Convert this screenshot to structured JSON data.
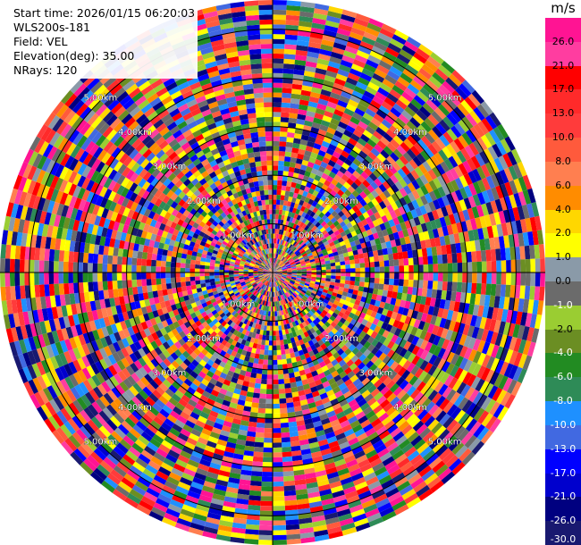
{
  "header": {
    "start_time": "Start time: 2026/01/15 06:20:03",
    "instrument": "WLS200s-181",
    "field": "Field: VEL",
    "elevation": "Elevation(deg): 35.00",
    "nrays": "NRays: 120"
  },
  "chart_data": {
    "type": "heatmap",
    "projection": "polar-ppi",
    "field": "VEL",
    "units": "m/s",
    "n_rays": 120,
    "elevation_deg": 35.0,
    "range_rings_km": [
      1.0,
      2.0,
      3.0,
      4.0,
      5.0
    ],
    "ring_labels": [
      "1.00km",
      "2.00km",
      "3.00km",
      "4.00km",
      "5.00km"
    ],
    "max_range_km": 5.6,
    "range_gate_km": 0.1,
    "value_range": [
      -30.0,
      30.0
    ],
    "colorbar": {
      "unit_label": "m/s",
      "labels": [
        "26.0",
        "21.0",
        "17.0",
        "13.0",
        "10.0",
        "8.0",
        "6.0",
        "4.0",
        "2.0",
        "1.0",
        "0.0",
        "-1.0",
        "-2.0",
        "-4.0",
        "-6.0",
        "-8.0",
        "-10.0",
        "-13.0",
        "-17.0",
        "-21.0",
        "-26.0",
        "-30.0"
      ],
      "boundaries": [
        30,
        26,
        21,
        17,
        13,
        10,
        8,
        6,
        4,
        2,
        1,
        0,
        -1,
        -2,
        -4,
        -6,
        -8,
        -10,
        -13,
        -17,
        -21,
        -26,
        -30
      ],
      "colors": [
        "#ff1493",
        "#ff3da0",
        "#ff0000",
        "#ff2a2a",
        "#ff3b3b",
        "#ff5a3c",
        "#ff7f50",
        "#ff8c00",
        "#ffd700",
        "#ffff00",
        "#8a9aa8",
        "#6b6b6b",
        "#9acd32",
        "#6b8e23",
        "#228b22",
        "#2e8b57",
        "#1e90ff",
        "#4169e1",
        "#0000ff",
        "#0000cd",
        "#000080",
        "#191970"
      ]
    },
    "description_note": "velocity field appears highly noisy; values vary pseudo-randomly per gate"
  }
}
